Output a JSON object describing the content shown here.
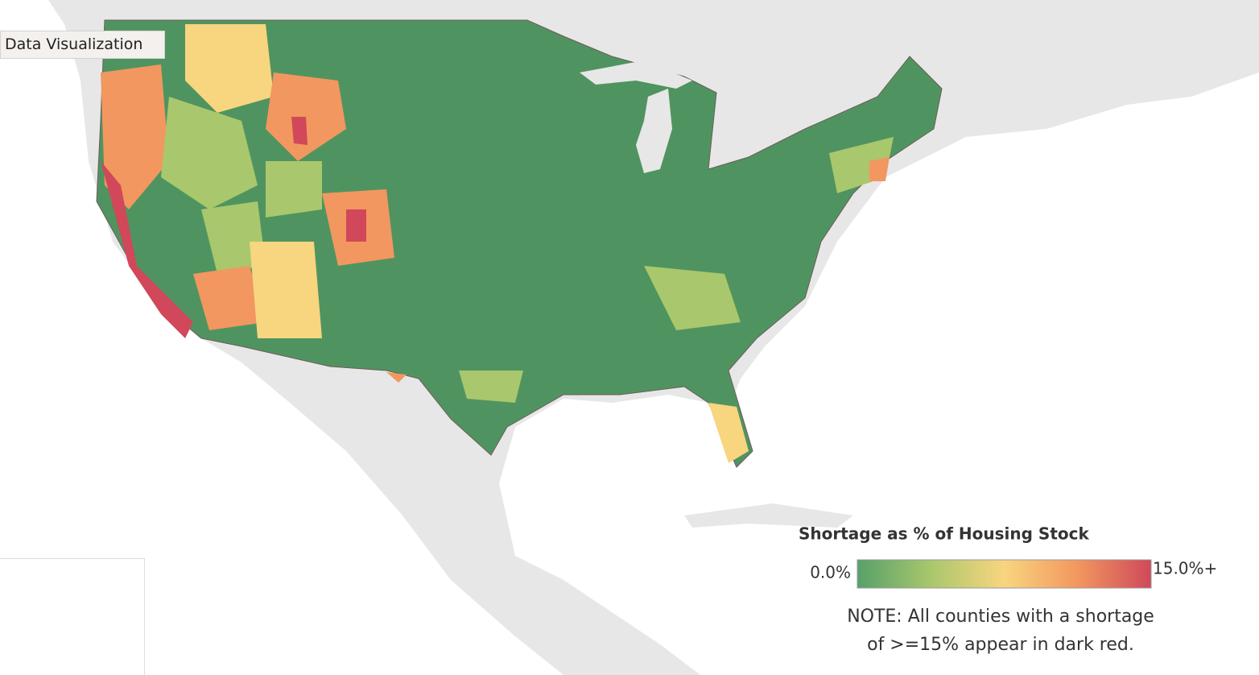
{
  "tab": "Data Visualization",
  "legend": {
    "title": "Shortage as % of Housing Stock",
    "min_label": "0.0%",
    "max_label": "15.0%+",
    "colors": [
      "#57a06a",
      "#a9c76c",
      "#f8d57f",
      "#f2975f",
      "#d0485a"
    ]
  },
  "note": [
    "NOTE: All counties with a shortage",
    "of >=15% appear in dark red."
  ]
}
